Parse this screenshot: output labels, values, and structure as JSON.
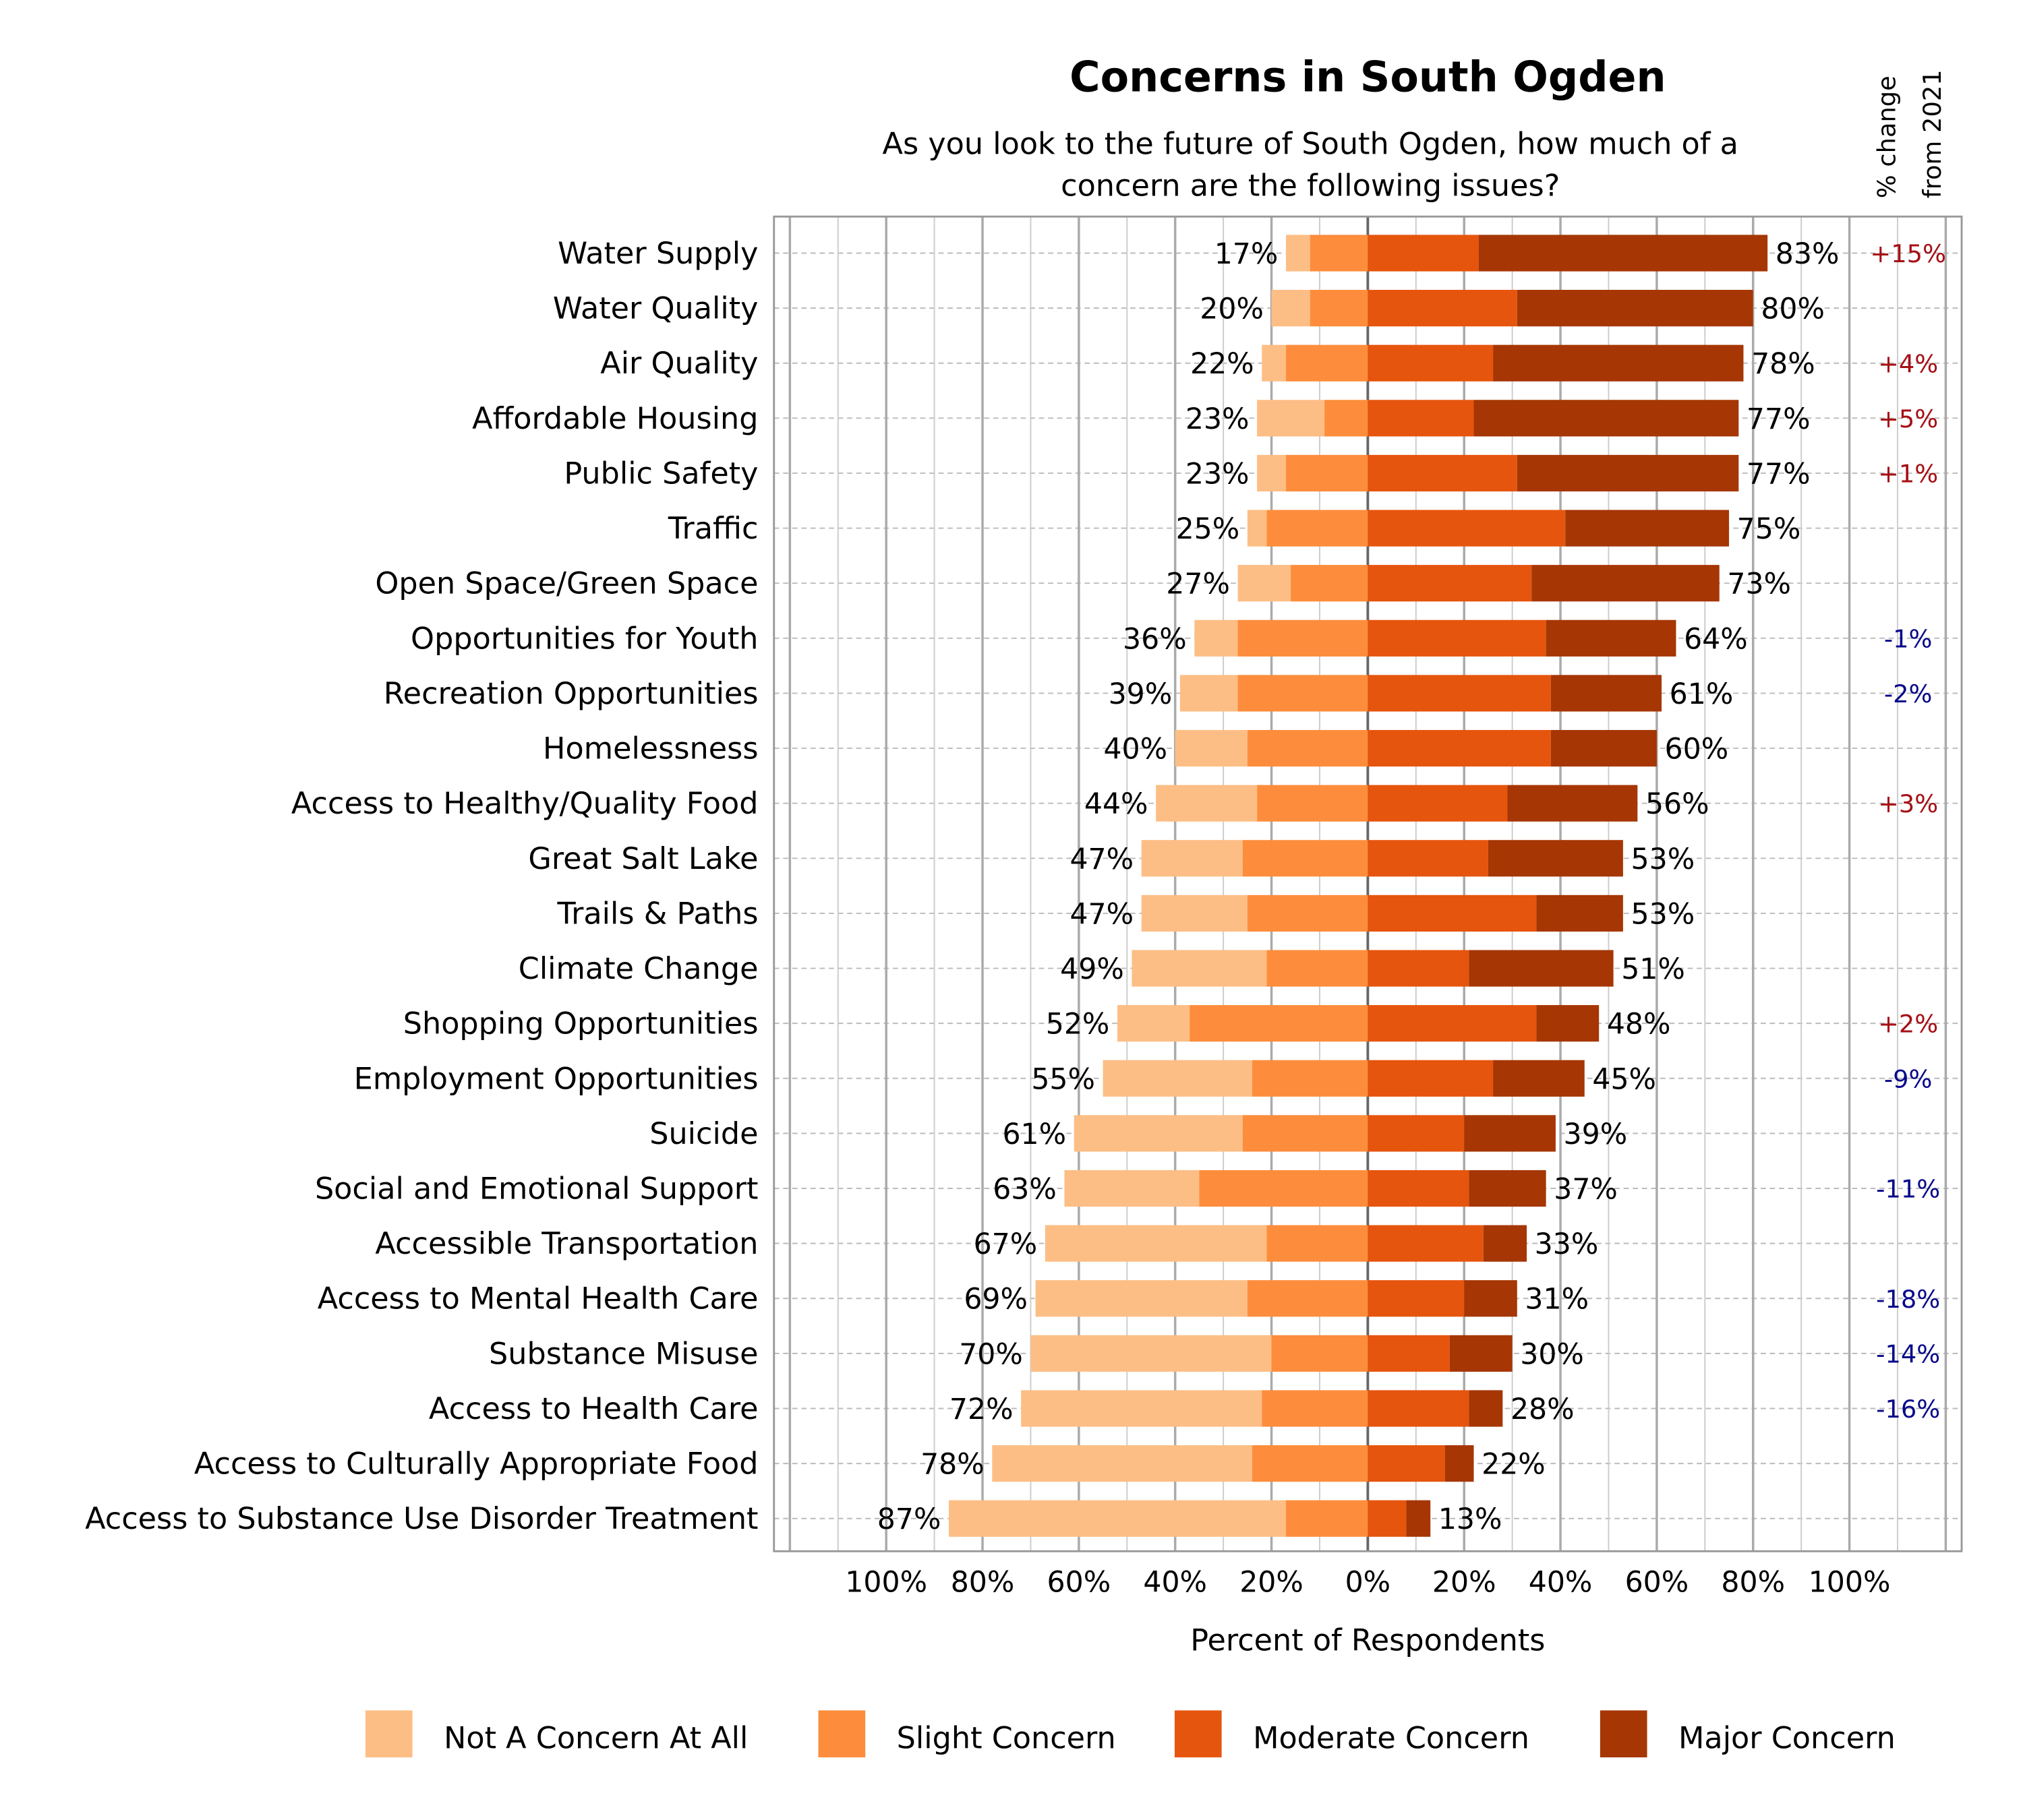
{
  "chart_data": {
    "type": "bar",
    "orientation": "horizontal-diverging-stacked",
    "title": "Concerns in South Ogden",
    "subtitle": [
      "As you look to the future of South Ogden, how much of a",
      "concern are the following issues?"
    ],
    "xlabel": "Percent of Respondents",
    "change_header": [
      "% change",
      "from 2021"
    ],
    "xlim": [
      -100,
      100
    ],
    "xticks": [
      "100%",
      "80%",
      "60%",
      "40%",
      "20%",
      "0%",
      "20%",
      "40%",
      "60%",
      "80%",
      "100%"
    ],
    "grid": true,
    "legend_position": "bottom",
    "colors": {
      "Not A Concern At All": "#fdbe85",
      "Slight Concern": "#fd8d3c",
      "Moderate Concern": "#e6550d",
      "Major Concern": "#a63603",
      "positive_change": "#a50f15",
      "negative_change": "#08088a"
    },
    "series_names": [
      "Not A Concern At All",
      "Slight Concern",
      "Moderate Concern",
      "Major Concern"
    ],
    "categories": [
      "Water Supply",
      "Water Quality",
      "Air Quality",
      "Affordable Housing",
      "Public Safety",
      "Traffic",
      "Open Space/Green Space",
      "Opportunities for Youth",
      "Recreation Opportunities",
      "Homelessness",
      "Access to Healthy/Quality Food",
      "Great Salt Lake",
      "Trails & Paths",
      "Climate Change",
      "Shopping Opportunities",
      "Employment Opportunities",
      "Suicide",
      "Social and Emotional Support",
      "Accessible Transportation",
      "Access to Mental Health Care",
      "Substance Misuse",
      "Access to Health Care",
      "Access to Culturally Appropriate Food",
      "Access to Substance Use Disorder Treatment"
    ],
    "series": [
      {
        "name": "Not A Concern At All",
        "values": [
          5,
          8,
          5,
          14,
          6,
          4,
          11,
          9,
          12,
          15,
          21,
          21,
          22,
          28,
          15,
          31,
          35,
          28,
          46,
          44,
          50,
          50,
          54,
          70
        ]
      },
      {
        "name": "Slight Concern",
        "values": [
          12,
          12,
          17,
          9,
          17,
          21,
          16,
          27,
          27,
          25,
          23,
          26,
          25,
          21,
          37,
          24,
          26,
          35,
          21,
          25,
          20,
          22,
          24,
          17
        ]
      },
      {
        "name": "Moderate Concern",
        "values": [
          23,
          31,
          26,
          22,
          31,
          41,
          34,
          37,
          38,
          38,
          29,
          25,
          35,
          21,
          35,
          26,
          20,
          21,
          24,
          20,
          17,
          21,
          16,
          8
        ]
      },
      {
        "name": "Major Concern",
        "values": [
          60,
          49,
          52,
          55,
          46,
          34,
          39,
          27,
          23,
          22,
          27,
          28,
          18,
          30,
          13,
          19,
          19,
          16,
          9,
          11,
          13,
          7,
          6,
          5
        ]
      }
    ],
    "left_labels": [
      "17%",
      "20%",
      "22%",
      "23%",
      "23%",
      "25%",
      "27%",
      "36%",
      "39%",
      "40%",
      "44%",
      "47%",
      "47%",
      "49%",
      "52%",
      "55%",
      "61%",
      "63%",
      "67%",
      "69%",
      "70%",
      "72%",
      "78%",
      "87%"
    ],
    "right_labels": [
      "83%",
      "80%",
      "78%",
      "77%",
      "77%",
      "75%",
      "73%",
      "64%",
      "61%",
      "60%",
      "56%",
      "53%",
      "53%",
      "51%",
      "48%",
      "45%",
      "39%",
      "37%",
      "33%",
      "31%",
      "30%",
      "28%",
      "22%",
      "13%"
    ],
    "change_from_2021": [
      "+15%",
      "",
      "+4%",
      "+5%",
      "+1%",
      "",
      "",
      "-1%",
      "-2%",
      "",
      "+3%",
      "",
      "",
      "",
      "+2%",
      "-9%",
      "",
      "-11%",
      "",
      "-18%",
      "-14%",
      "-16%",
      "",
      ""
    ]
  }
}
